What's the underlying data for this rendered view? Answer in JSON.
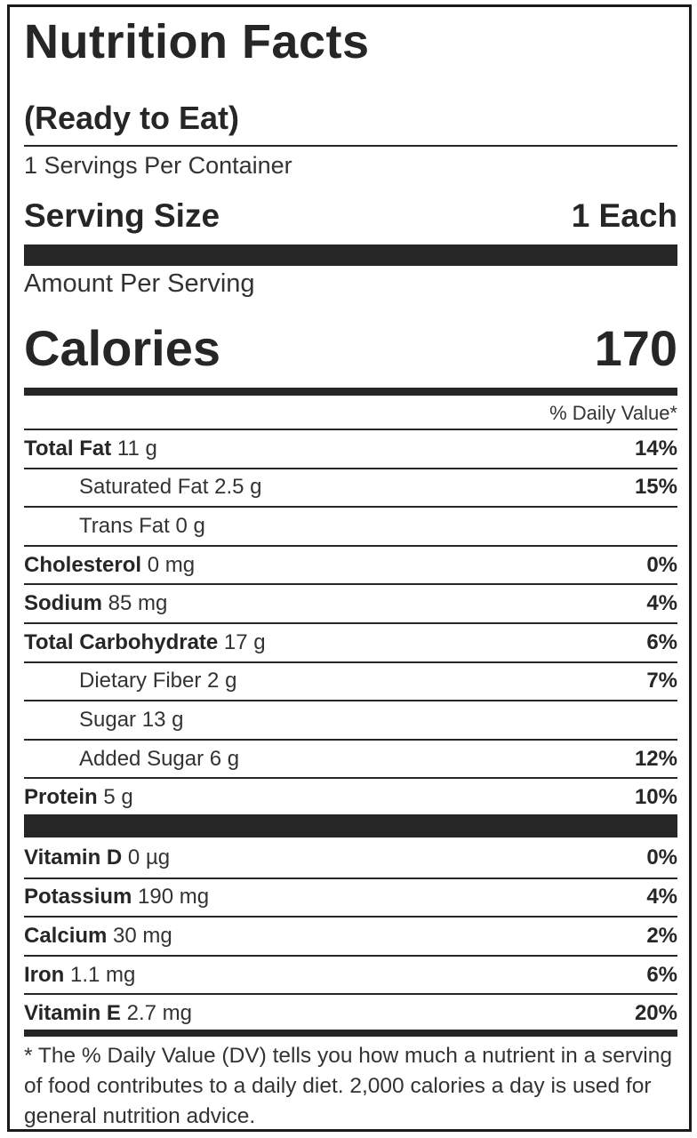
{
  "header": {
    "title": "Nutrition Facts",
    "subtitle": "(Ready to Eat)",
    "servings_per_container": "1 Servings Per Container",
    "serving_size_label": "Serving Size",
    "serving_size_value": "1 Each"
  },
  "calories": {
    "amount_per_serving": "Amount Per Serving",
    "label": "Calories",
    "value": "170"
  },
  "daily_value_header": "% Daily Value*",
  "nutrients": [
    {
      "name": "Total Fat",
      "amount": "11 g",
      "dv": "14%",
      "indent": false
    },
    {
      "name": "Saturated Fat",
      "amount": "2.5 g",
      "dv": "15%",
      "indent": true
    },
    {
      "name": "Trans Fat",
      "amount": "0 g",
      "dv": "",
      "indent": true
    },
    {
      "name": "Cholesterol",
      "amount": "0 mg",
      "dv": "0%",
      "indent": false
    },
    {
      "name": "Sodium",
      "amount": "85 mg",
      "dv": "4%",
      "indent": false
    },
    {
      "name": "Total Carbohydrate",
      "amount": "17 g",
      "dv": "6%",
      "indent": false
    },
    {
      "name": "Dietary Fiber",
      "amount": "2 g",
      "dv": "7%",
      "indent": true
    },
    {
      "name": "Sugar",
      "amount": "13 g",
      "dv": "",
      "indent": true
    },
    {
      "name": "Added Sugar",
      "amount": "6 g",
      "dv": "12%",
      "indent": true
    },
    {
      "name": "Protein",
      "amount": "5 g",
      "dv": "10%",
      "indent": false
    }
  ],
  "vitamins": [
    {
      "name": "Vitamin D",
      "amount": "0 µg",
      "dv": "0%"
    },
    {
      "name": "Potassium",
      "amount": "190 mg",
      "dv": "4%"
    },
    {
      "name": "Calcium",
      "amount": "30 mg",
      "dv": "2%"
    },
    {
      "name": "Iron",
      "amount": "1.1 mg",
      "dv": "6%"
    },
    {
      "name": "Vitamin E",
      "amount": "2.7 mg",
      "dv": "20%"
    }
  ],
  "footnote": "* The % Daily Value (DV) tells you how much a nutrient in a serving of food contributes to a daily diet. 2,000 calories a day is used for general nutrition advice."
}
